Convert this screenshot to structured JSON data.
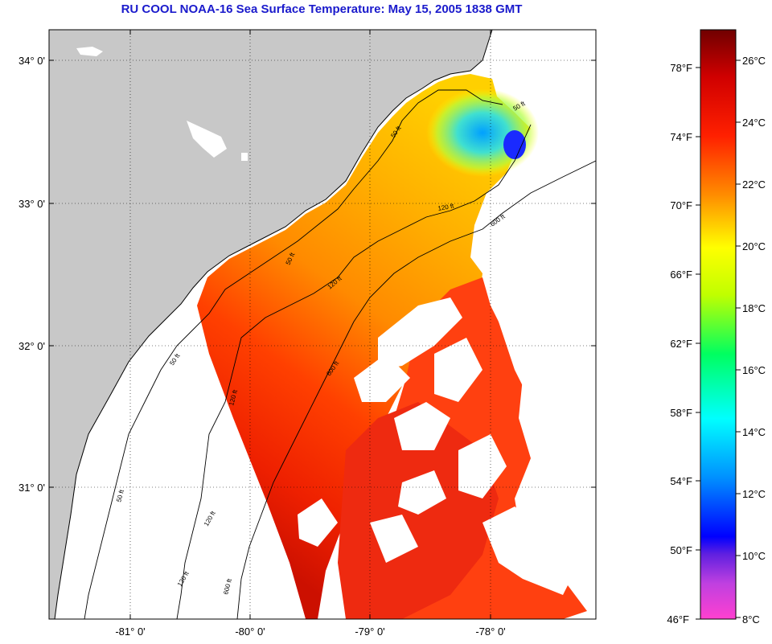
{
  "title": "RU COOL  NOAA-16  Sea Surface Temperature:  May 15, 2005 1838 GMT",
  "axes": {
    "lat_labels": [
      "34° 0'",
      "33° 0'",
      "32° 0'",
      "31° 0'"
    ],
    "lon_labels": [
      "-81° 0'",
      "-80° 0'",
      "-79° 0'",
      "-78° 0'"
    ]
  },
  "contours": {
    "labels": [
      "50 ft",
      "50 ft",
      "50 ft",
      "50 ft",
      "50 ft",
      "120 ft",
      "120 ft",
      "120 ft",
      "120 ft",
      "120 ft",
      "600 ft",
      "600 ft",
      "600 ft"
    ]
  },
  "colorbar": {
    "fahrenheit": [
      "78°F",
      "74°F",
      "70°F",
      "66°F",
      "62°F",
      "58°F",
      "54°F",
      "50°F",
      "46°F"
    ],
    "celsius": [
      "26°C",
      "24°C",
      "22°C",
      "20°C",
      "18°C",
      "16°C",
      "14°C",
      "12°C",
      "10°C",
      "8°C"
    ]
  },
  "colors": {
    "land": "#c8c8c8",
    "cloud": "#ffffff",
    "title": "#1a1acc"
  }
}
